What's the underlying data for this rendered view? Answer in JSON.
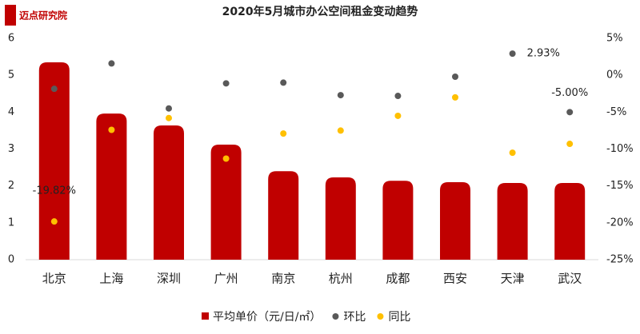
{
  "logo": "迈点研究院",
  "chart_data": {
    "type": "bar-scatter",
    "title": "2020年5月城市办公空间租金变动趋势",
    "categories": [
      "北京",
      "上海",
      "深圳",
      "广州",
      "南京",
      "杭州",
      "成都",
      "西安",
      "天津",
      "武汉"
    ],
    "series": [
      {
        "name": "平均单价（元/日/㎡）",
        "type": "bar",
        "color": "#c00000",
        "values": [
          5.35,
          3.96,
          3.64,
          3.12,
          2.4,
          2.23,
          2.14,
          2.1,
          2.08,
          2.08
        ]
      },
      {
        "name": "环比",
        "type": "scatter",
        "axis": "y2",
        "color": "#595959",
        "values": [
          -1.84,
          1.6,
          -4.5,
          -1.1,
          -1.0,
          -2.7,
          -2.8,
          -0.2,
          2.93,
          -5.0
        ],
        "value_labels": [
          null,
          null,
          null,
          null,
          null,
          null,
          null,
          null,
          "2.93%",
          "-5.00%"
        ]
      },
      {
        "name": "同比",
        "type": "scatter",
        "axis": "y2",
        "color": "#ffc000",
        "values": [
          -19.82,
          -7.4,
          -5.8,
          -11.3,
          -7.9,
          -7.5,
          -5.5,
          -3.0,
          -10.5,
          -9.3
        ],
        "value_labels": [
          "-19.82%",
          null,
          null,
          null,
          null,
          null,
          null,
          null,
          null,
          null
        ]
      }
    ],
    "ylim": [
      0,
      6
    ],
    "yticks": [
      0,
      1,
      2,
      3,
      4,
      5,
      6
    ],
    "y2lim": [
      -25,
      5
    ],
    "y2ticks": [
      {
        "value": -25,
        "label": "-25%"
      },
      {
        "value": -20,
        "label": "-20%"
      },
      {
        "value": -15,
        "label": "-15%"
      },
      {
        "value": -10,
        "label": "-10%"
      },
      {
        "value": -5,
        "label": "-5%"
      },
      {
        "value": 0,
        "label": "0%"
      },
      {
        "value": 5,
        "label": "5%"
      }
    ],
    "legend": "bottom"
  }
}
